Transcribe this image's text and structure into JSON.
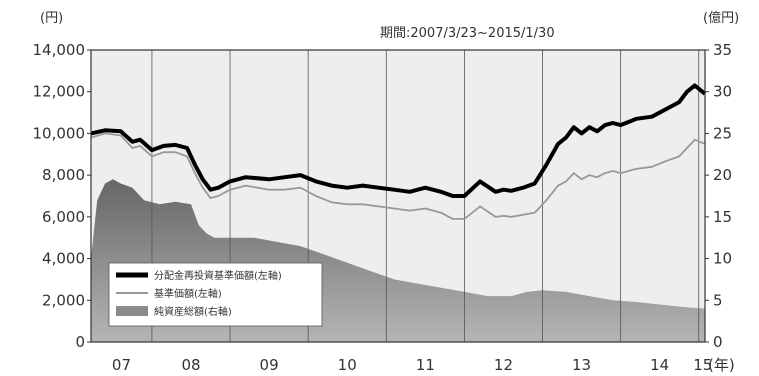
{
  "chart_data": {
    "type": "line",
    "period_label": "期間:2007/3/23~2015/1/30",
    "y_left_unit": "(円)",
    "y_right_unit": "(億円)",
    "x_unit": "(年)",
    "x_tick_labels": [
      "07",
      "08",
      "09",
      "10",
      "11",
      "12",
      "13",
      "14",
      "15"
    ],
    "y_left": {
      "min": 0,
      "max": 14000,
      "ticks": [
        "0",
        "2,000",
        "4,000",
        "6,000",
        "8,000",
        "10,000",
        "12,000",
        "14,000"
      ]
    },
    "y_right": {
      "min": 0,
      "max": 35,
      "ticks": [
        "0",
        "5",
        "10",
        "15",
        "20",
        "25",
        "30",
        "35"
      ]
    },
    "x_range": [
      2007.22,
      2015.08
    ],
    "grid": {
      "vertical_year_lines": true,
      "horizontal": false
    },
    "legend_position": "bottom-left",
    "colors": {
      "reinvested": "#000000",
      "nav": "#999999",
      "assets_fill": "#8c8c8c",
      "plot_bg": "#eeeeee"
    },
    "series": [
      {
        "name": "分配金再投資基準価額(左軸)",
        "axis": "left",
        "style": "thick-black-line",
        "x": [
          2007.22,
          2007.4,
          2007.6,
          2007.75,
          2007.85,
          2008.0,
          2008.15,
          2008.3,
          2008.45,
          2008.55,
          2008.65,
          2008.75,
          2008.85,
          2009.0,
          2009.2,
          2009.5,
          2009.7,
          2009.9,
          2010.1,
          2010.3,
          2010.5,
          2010.7,
          2010.9,
          2011.1,
          2011.3,
          2011.5,
          2011.7,
          2011.85,
          2012.0,
          2012.2,
          2012.4,
          2012.5,
          2012.6,
          2012.75,
          2012.9,
          2013.05,
          2013.2,
          2013.3,
          2013.4,
          2013.5,
          2013.6,
          2013.7,
          2013.8,
          2013.9,
          2014.0,
          2014.2,
          2014.4,
          2014.6,
          2014.75,
          2014.85,
          2014.95,
          2015.08
        ],
        "values": [
          10000,
          10150,
          10100,
          9600,
          9700,
          9200,
          9400,
          9450,
          9300,
          8500,
          7800,
          7300,
          7400,
          7700,
          7900,
          7800,
          7900,
          8000,
          7700,
          7500,
          7400,
          7500,
          7400,
          7300,
          7200,
          7400,
          7200,
          7000,
          7000,
          7700,
          7200,
          7300,
          7250,
          7400,
          7600,
          8500,
          9500,
          9800,
          10300,
          10000,
          10300,
          10100,
          10400,
          10500,
          10400,
          10700,
          10800,
          11200,
          11500,
          12000,
          12300,
          11900
        ]
      },
      {
        "name": "基準価額(左軸)",
        "axis": "left",
        "style": "thin-gray-line",
        "x": [
          2007.22,
          2007.4,
          2007.6,
          2007.75,
          2007.85,
          2008.0,
          2008.15,
          2008.3,
          2008.45,
          2008.55,
          2008.65,
          2008.75,
          2008.85,
          2009.0,
          2009.2,
          2009.5,
          2009.7,
          2009.9,
          2010.1,
          2010.3,
          2010.5,
          2010.7,
          2010.9,
          2011.1,
          2011.3,
          2011.5,
          2011.7,
          2011.85,
          2012.0,
          2012.2,
          2012.4,
          2012.5,
          2012.6,
          2012.75,
          2012.9,
          2013.05,
          2013.2,
          2013.3,
          2013.4,
          2013.5,
          2013.6,
          2013.7,
          2013.8,
          2013.9,
          2014.0,
          2014.2,
          2014.4,
          2014.6,
          2014.75,
          2014.85,
          2014.95,
          2015.08
        ],
        "values": [
          9800,
          10000,
          9900,
          9300,
          9400,
          8900,
          9100,
          9100,
          8900,
          8100,
          7400,
          6900,
          7000,
          7300,
          7500,
          7300,
          7300,
          7400,
          7000,
          6700,
          6600,
          6600,
          6500,
          6400,
          6300,
          6400,
          6200,
          5900,
          5900,
          6500,
          6000,
          6050,
          6000,
          6100,
          6200,
          6800,
          7500,
          7700,
          8100,
          7800,
          8000,
          7900,
          8100,
          8200,
          8100,
          8300,
          8400,
          8700,
          8900,
          9300,
          9700,
          9500
        ]
      },
      {
        "name": "純資産総額(右軸)",
        "axis": "right",
        "style": "gray-area",
        "x": [
          2007.22,
          2007.3,
          2007.4,
          2007.5,
          2007.6,
          2007.75,
          2007.9,
          2008.1,
          2008.3,
          2008.5,
          2008.6,
          2008.7,
          2008.8,
          2009.0,
          2009.3,
          2009.6,
          2009.9,
          2010.2,
          2010.5,
          2010.8,
          2011.1,
          2011.4,
          2011.7,
          2012.0,
          2012.3,
          2012.6,
          2012.8,
          2013.0,
          2013.3,
          2013.6,
          2013.9,
          2014.2,
          2014.5,
          2014.8,
          2015.08
        ],
        "values": [
          10,
          17,
          19,
          19.5,
          19,
          18.5,
          17,
          16.5,
          16.8,
          16.5,
          14,
          13,
          12.5,
          12.5,
          12.5,
          12,
          11.5,
          10.5,
          9.5,
          8.5,
          7.5,
          7,
          6.5,
          6,
          5.5,
          5.5,
          6,
          6.2,
          6,
          5.5,
          5,
          4.8,
          4.5,
          4.2,
          4
        ]
      }
    ]
  }
}
